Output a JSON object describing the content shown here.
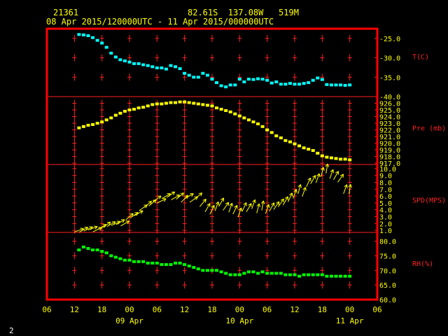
{
  "header": {
    "station": "21361",
    "location": "82.61S  137.08W   519M",
    "period": "08 Apr 2015/120000UTC - 11 Apr 2015/000000UTC"
  },
  "corner_label": "2",
  "colors": {
    "frame": "#ff0000",
    "gridline": "#ff2020",
    "axis_text": "#ffff00",
    "panel_label": "#ff2020",
    "temperature": "#00ffff",
    "pressure": "#ffff00",
    "wind": "#ffff00",
    "rh": "#00ff00"
  },
  "chart_data": {
    "type": "scatter",
    "x_unit": "hours since 08 Apr 2015 06UTC",
    "x_range": [
      0,
      72
    ],
    "x_ticks": [
      "06",
      "12",
      "18",
      "00",
      "06",
      "12",
      "18",
      "00",
      "06",
      "12",
      "18",
      "00",
      "06"
    ],
    "x_day_labels": [
      {
        "at": 18,
        "label": "09 Apr"
      },
      {
        "at": 42,
        "label": "10 Apr"
      },
      {
        "at": 66,
        "label": "11 Apr"
      }
    ],
    "panels": [
      {
        "id": "temperature",
        "label": "T(C)",
        "ylim": [
          -40,
          -22.5
        ],
        "ticks": [
          "-25.0",
          "-30.0",
          "-35.0",
          "-40.0"
        ],
        "tick_values": [
          -25,
          -30,
          -35,
          -40
        ],
        "grid_rows": [
          -25,
          -30,
          -35
        ],
        "series": [
          {
            "x": [
              7,
              8,
              9,
              10,
              11,
              12,
              13,
              14,
              15,
              16,
              17,
              18,
              19,
              20,
              21,
              22,
              23,
              24,
              25,
              26,
              27,
              28,
              29,
              30,
              31,
              32,
              33,
              34,
              35,
              36,
              37,
              38,
              39,
              40,
              41,
              42,
              43,
              44,
              45,
              46,
              47,
              48,
              49,
              50,
              51,
              52,
              53,
              54,
              55,
              56,
              57,
              58,
              59,
              60,
              61,
              62,
              63,
              64,
              65,
              66
            ],
            "y": [
              -24.0,
              -24.1,
              -24.3,
              -24.8,
              -25.5,
              -26.2,
              -27.3,
              -28.8,
              -29.8,
              -30.5,
              -30.8,
              -31.1,
              -31.5,
              -31.5,
              -31.8,
              -32.0,
              -32.3,
              -32.6,
              -32.6,
              -32.9,
              -32.0,
              -32.3,
              -32.8,
              -34.0,
              -34.5,
              -35.0,
              -35.0,
              -34.0,
              -34.5,
              -35.5,
              -36.4,
              -37.2,
              -37.5,
              -37.0,
              -37.0,
              -35.5,
              -36.2,
              -35.5,
              -35.6,
              -35.4,
              -35.5,
              -35.8,
              -36.5,
              -36.2,
              -36.8,
              -36.8,
              -36.6,
              -36.8,
              -36.8,
              -36.6,
              -36.4,
              -35.8,
              -35.2,
              -35.6,
              -36.9,
              -37.0,
              -37.0,
              -37.0,
              -37.1,
              -37.0
            ]
          }
        ]
      },
      {
        "id": "pressure",
        "label": "Pre (mb)",
        "ylim": [
          916.8,
          927.0
        ],
        "ticks": [
          "926.0",
          "925.0",
          "924.0",
          "923.0",
          "922.0",
          "921.0",
          "920.0",
          "919.0",
          "918.0",
          "917.0"
        ],
        "tick_values": [
          926,
          925,
          924,
          923,
          922,
          921,
          920,
          919,
          918,
          917
        ],
        "grid_rows": [
          926,
          925,
          924,
          923,
          922,
          921,
          920,
          919,
          918,
          917
        ],
        "series": [
          {
            "x": [
              7,
              8,
              9,
              10,
              11,
              12,
              13,
              14,
              15,
              16,
              17,
              18,
              19,
              20,
              21,
              22,
              23,
              24,
              25,
              26,
              27,
              28,
              29,
              30,
              31,
              32,
              33,
              34,
              35,
              36,
              37,
              38,
              39,
              40,
              41,
              42,
              43,
              44,
              45,
              46,
              47,
              48,
              49,
              50,
              51,
              52,
              53,
              54,
              55,
              56,
              57,
              58,
              59,
              60,
              61,
              62,
              63,
              64,
              65,
              66
            ],
            "y": [
              922.3,
              922.5,
              922.7,
              922.8,
              923.0,
              923.2,
              923.5,
              923.8,
              924.2,
              924.5,
              924.8,
              925.0,
              925.1,
              925.3,
              925.4,
              925.6,
              925.8,
              925.9,
              925.9,
              926.0,
              926.1,
              926.1,
              926.2,
              926.2,
              926.1,
              926.0,
              925.9,
              925.8,
              925.7,
              925.6,
              925.3,
              925.1,
              924.9,
              924.7,
              924.4,
              924.1,
              923.8,
              923.5,
              923.2,
              922.9,
              922.5,
              922.0,
              921.6,
              921.1,
              920.8,
              920.4,
              920.2,
              919.9,
              919.6,
              919.3,
              919.1,
              918.9,
              918.5,
              918.1,
              917.9,
              917.8,
              917.7,
              917.6,
              917.6,
              917.5
            ]
          }
        ]
      },
      {
        "id": "wind",
        "label": "SPD(MPS)",
        "ylim": [
          0.7,
          10.6
        ],
        "ticks": [
          "10.0",
          "9.0",
          "8.0",
          "7.0",
          "6.0",
          "5.0",
          "4.0",
          "3.0",
          "2.0",
          "1.0"
        ],
        "tick_values": [
          10,
          9,
          8,
          7,
          6,
          5,
          4,
          3,
          2,
          1
        ],
        "grid_rows": [
          10,
          9,
          8,
          7,
          6,
          5,
          4,
          3,
          2,
          1
        ],
        "series": [
          {
            "x": [
              7,
              8,
              9,
              10,
              11,
              12,
              13,
              14,
              15,
              16,
              17,
              18,
              19,
              20,
              21,
              22,
              23,
              24,
              25,
              26,
              27,
              28,
              29,
              30,
              31,
              32,
              33,
              34,
              35,
              36,
              37,
              38,
              39,
              40,
              41,
              42,
              43,
              44,
              45,
              46,
              47,
              48,
              49,
              50,
              51,
              52,
              53,
              54,
              55,
              56,
              57,
              58,
              59,
              60,
              61,
              62,
              63,
              64,
              65,
              66
            ],
            "y": [
              1.0,
              1.1,
              1.2,
              1.3,
              1.1,
              1.5,
              1.8,
              1.9,
              2.0,
              2.2,
              2.0,
              3.0,
              3.2,
              3.5,
              4.3,
              4.8,
              5.0,
              5.6,
              5.3,
              6.0,
              6.2,
              5.8,
              6.0,
              5.6,
              6.0,
              5.5,
              6.0,
              5.0,
              4.3,
              4.0,
              4.5,
              5.1,
              4.5,
              4.3,
              4.0,
              3.6,
              4.4,
              4.3,
              4.8,
              4.2,
              4.6,
              4.1,
              4.4,
              4.6,
              5.0,
              5.3,
              5.8,
              6.3,
              7.0,
              6.6,
              8.0,
              8.4,
              8.6,
              9.5,
              10.0,
              9.2,
              9.0,
              8.6,
              7.0,
              7.0
            ],
            "dir": [
              250,
              240,
              245,
              250,
              245,
              240,
              235,
              240,
              245,
              240,
              240,
              230,
              235,
              240,
              235,
              230,
              230,
              235,
              245,
              240,
              235,
              240,
              230,
              225,
              240,
              235,
              230,
              220,
              210,
              205,
              200,
              210,
              215,
              200,
              205,
              200,
              205,
              210,
              200,
              195,
              190,
              200,
              210,
              215,
              215,
              210,
              205,
              200,
              195,
              200,
              205,
              210,
              200,
              195,
              190,
              200,
              210,
              215,
              200,
              190
            ]
          }
        ]
      },
      {
        "id": "rh",
        "label": "RH(%)",
        "ylim": [
          60,
          83
        ],
        "ticks": [
          "80.0",
          "75.0",
          "70.0",
          "65.0",
          "60.0"
        ],
        "tick_values": [
          80,
          75,
          70,
          65,
          60
        ],
        "grid_rows": [
          80,
          75,
          70,
          65
        ],
        "series": [
          {
            "x": [
              7,
              8,
              9,
              10,
              11,
              12,
              13,
              14,
              15,
              16,
              17,
              18,
              19,
              20,
              21,
              22,
              23,
              24,
              25,
              26,
              27,
              28,
              29,
              30,
              31,
              32,
              33,
              34,
              35,
              36,
              37,
              38,
              39,
              40,
              41,
              42,
              43,
              44,
              45,
              46,
              47,
              48,
              49,
              50,
              51,
              52,
              53,
              54,
              55,
              56,
              57,
              58,
              59,
              60,
              61,
              62,
              63,
              64,
              65,
              66
            ],
            "y": [
              77,
              78,
              77.5,
              77,
              77,
              76.5,
              76,
              75,
              74.5,
              74,
              73.5,
              73.5,
              73,
              73,
              73,
              72.5,
              72.5,
              72.5,
              72,
              72,
              72,
              72.5,
              72.5,
              72,
              71.5,
              71,
              70.5,
              70,
              70,
              70,
              70,
              69.5,
              69,
              68.5,
              68.5,
              68.5,
              69,
              69.5,
              69.5,
              69,
              69.5,
              69,
              69,
              69,
              69,
              68.5,
              68.5,
              68.5,
              68,
              68.5,
              68.5,
              68.5,
              68.5,
              68.5,
              68,
              68,
              68,
              68,
              68,
              68
            ]
          }
        ]
      }
    ]
  }
}
